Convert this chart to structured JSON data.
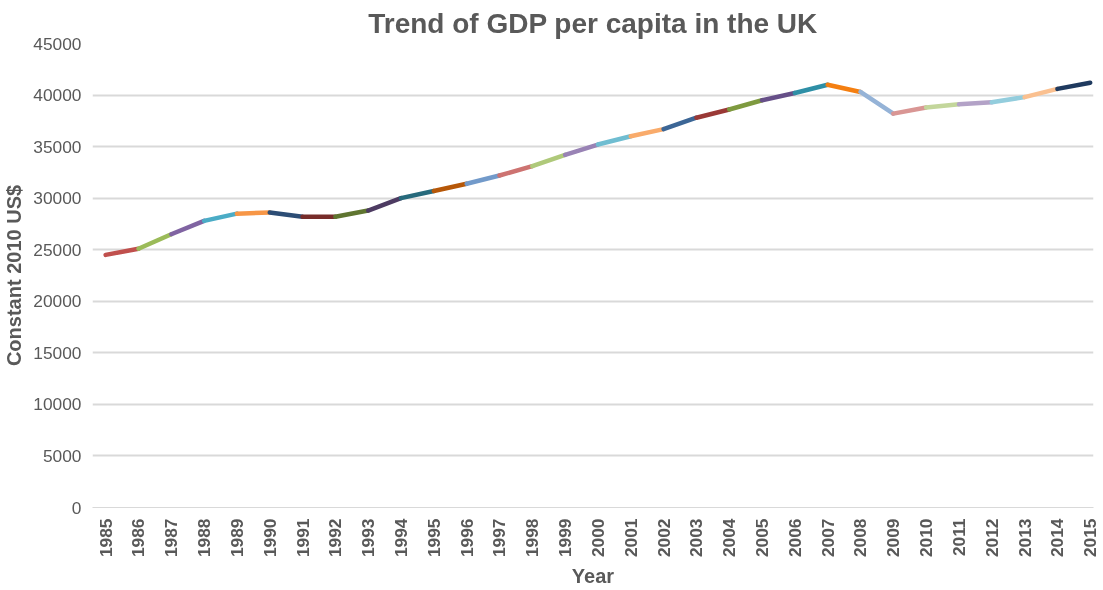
{
  "chart_data": {
    "type": "line",
    "title": "Trend of GDP per capita in the UK",
    "xlabel": "Year",
    "ylabel": "Constant 2010 US$",
    "series": [
      {
        "color": "#c0504d",
        "x": [
          1985,
          1986
        ],
        "values": [
          24500,
          25100
        ]
      },
      {
        "color": "#9bbb59",
        "x": [
          1986,
          1987
        ],
        "values": [
          25100,
          26500
        ]
      },
      {
        "color": "#8064a2",
        "x": [
          1987,
          1988
        ],
        "values": [
          26500,
          27800
        ]
      },
      {
        "color": "#4bacc6",
        "x": [
          1988,
          1989
        ],
        "values": [
          27800,
          28500
        ]
      },
      {
        "color": "#f79646",
        "x": [
          1989,
          1990
        ],
        "values": [
          28500,
          28600
        ]
      },
      {
        "color": "#2c4d75",
        "x": [
          1990,
          1991
        ],
        "values": [
          28600,
          28200
        ]
      },
      {
        "color": "#772c2a",
        "x": [
          1991,
          1992
        ],
        "values": [
          28200,
          28200
        ]
      },
      {
        "color": "#5f7530",
        "x": [
          1992,
          1993
        ],
        "values": [
          28200,
          28800
        ]
      },
      {
        "color": "#4d3b62",
        "x": [
          1993,
          1994
        ],
        "values": [
          28800,
          30000
        ]
      },
      {
        "color": "#276a7c",
        "x": [
          1994,
          1995
        ],
        "values": [
          30000,
          30700
        ]
      },
      {
        "color": "#b65708",
        "x": [
          1995,
          1996
        ],
        "values": [
          30700,
          31400
        ]
      },
      {
        "color": "#729aca",
        "x": [
          1996,
          1997
        ],
        "values": [
          31400,
          32200
        ]
      },
      {
        "color": "#cd7371",
        "x": [
          1997,
          1998
        ],
        "values": [
          32200,
          33100
        ]
      },
      {
        "color": "#afc97a",
        "x": [
          1998,
          1999
        ],
        "values": [
          33100,
          34200
        ]
      },
      {
        "color": "#9983b5",
        "x": [
          1999,
          2000
        ],
        "values": [
          34200,
          35200
        ]
      },
      {
        "color": "#6fbdd1",
        "x": [
          2000,
          2001
        ],
        "values": [
          35200,
          36000
        ]
      },
      {
        "color": "#f9ab6b",
        "x": [
          2001,
          2002
        ],
        "values": [
          36000,
          36700
        ]
      },
      {
        "color": "#3c6696",
        "x": [
          2002,
          2003
        ],
        "values": [
          36700,
          37800
        ]
      },
      {
        "color": "#9a3936",
        "x": [
          2003,
          2004
        ],
        "values": [
          37800,
          38600
        ]
      },
      {
        "color": "#7e9a3f",
        "x": [
          2004,
          2005
        ],
        "values": [
          38600,
          39500
        ]
      },
      {
        "color": "#664f88",
        "x": [
          2005,
          2006
        ],
        "values": [
          39500,
          40200
        ]
      },
      {
        "color": "#2e8fa6",
        "x": [
          2006,
          2007
        ],
        "values": [
          40200,
          41000
        ]
      },
      {
        "color": "#f47f11",
        "x": [
          2007,
          2008
        ],
        "values": [
          41000,
          40300
        ]
      },
      {
        "color": "#95b3d7",
        "x": [
          2008,
          2009
        ],
        "values": [
          40300,
          38200
        ]
      },
      {
        "color": "#d99694",
        "x": [
          2009,
          2010
        ],
        "values": [
          38200,
          38800
        ]
      },
      {
        "color": "#c3d69b",
        "x": [
          2010,
          2011
        ],
        "values": [
          38800,
          39100
        ]
      },
      {
        "color": "#b3a2c7",
        "x": [
          2011,
          2012
        ],
        "values": [
          39100,
          39300
        ]
      },
      {
        "color": "#93cddd",
        "x": [
          2012,
          2013
        ],
        "values": [
          39300,
          39800
        ]
      },
      {
        "color": "#fac090",
        "x": [
          2013,
          2014
        ],
        "values": [
          39800,
          40600
        ]
      },
      {
        "color": "#1f3a5f",
        "x": [
          2014,
          2015
        ],
        "values": [
          40600,
          41200
        ]
      }
    ],
    "xlim": [
      1984.6,
      2015.1
    ],
    "xticks": [
      1985,
      1986,
      1987,
      1988,
      1989,
      1990,
      1991,
      1992,
      1993,
      1994,
      1995,
      1996,
      1997,
      1998,
      1999,
      2000,
      2001,
      2002,
      2003,
      2004,
      2005,
      2006,
      2007,
      2008,
      2009,
      2010,
      2011,
      2012,
      2013,
      2014,
      2015
    ],
    "ylim": [
      0,
      45000
    ],
    "yticks": [
      0,
      5000,
      10000,
      15000,
      20000,
      25000,
      30000,
      35000,
      40000,
      45000
    ],
    "grid": "y",
    "marker": "none",
    "line_style": "solid"
  }
}
